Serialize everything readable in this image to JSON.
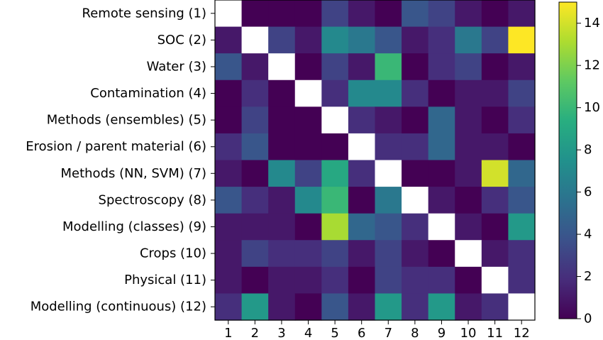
{
  "chart_data": {
    "type": "heatmap",
    "title": "",
    "xlabel": "",
    "ylabel": "",
    "row_labels": [
      "Remote sensing (1)",
      "SOC (2)",
      "Water (3)",
      "Contamination (4)",
      "Methods (ensembles) (5)",
      "Erosion / parent material (6)",
      "Methods (NN, SVM) (7)",
      "Spectroscopy (8)",
      "Modelling (classes) (9)",
      "Crops (10)",
      "Physical (11)",
      "Modelling (continuous) (12)"
    ],
    "col_labels": [
      "1",
      "2",
      "3",
      "4",
      "5",
      "6",
      "7",
      "8",
      "9",
      "10",
      "11",
      "12"
    ],
    "values": [
      [
        null,
        0,
        0,
        0,
        3,
        1,
        0,
        4,
        3,
        1,
        0,
        1
      ],
      [
        1,
        null,
        3,
        1,
        7,
        6,
        4,
        1,
        2,
        6,
        3,
        15
      ],
      [
        4,
        1,
        null,
        0,
        3,
        1,
        10,
        0,
        2,
        3,
        0,
        1
      ],
      [
        0,
        2,
        0,
        null,
        2,
        7,
        7,
        2,
        0,
        1,
        1,
        3
      ],
      [
        0,
        3,
        0,
        0,
        null,
        2,
        1,
        0,
        5,
        1,
        0,
        2
      ],
      [
        2,
        4,
        0,
        0,
        0,
        null,
        2,
        2,
        5,
        1,
        1,
        0
      ],
      [
        1,
        0,
        7,
        3,
        9,
        2,
        null,
        0,
        0,
        1,
        14,
        5
      ],
      [
        4,
        2,
        1,
        7,
        10,
        0,
        6,
        null,
        1,
        0,
        2,
        4
      ],
      [
        1,
        1,
        1,
        0,
        13,
        5,
        4,
        2,
        null,
        1,
        0,
        8
      ],
      [
        1,
        3,
        2,
        2,
        3,
        1,
        3,
        1,
        0,
        null,
        1,
        2
      ],
      [
        1,
        0,
        1,
        1,
        2,
        0,
        3,
        2,
        2,
        0,
        null,
        2
      ],
      [
        2,
        8,
        1,
        0,
        4,
        1,
        8,
        2,
        8,
        1,
        2,
        null
      ]
    ],
    "diagonal_color": "#ffffff",
    "colormap": "viridis",
    "vmin": 0,
    "vmax": 15,
    "colorbar_ticks": [
      0,
      2,
      4,
      6,
      8,
      10,
      12,
      14
    ],
    "legend": "right"
  }
}
